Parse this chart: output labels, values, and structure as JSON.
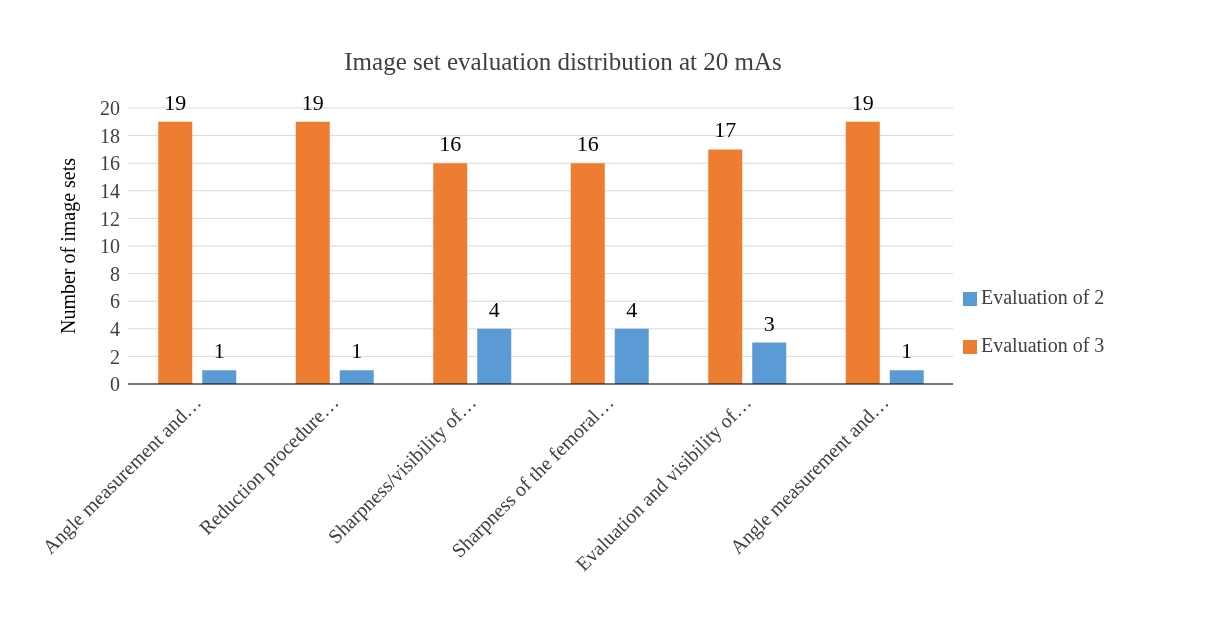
{
  "chart_data": {
    "type": "bar",
    "title": "Image set evaluation distribution at 20 mAs",
    "ylabel": "Number of image sets",
    "categories": [
      "Angle measurement and…",
      "Reduction procedure…",
      "Sharpness/visibility of…",
      "Sharpness of the femoral…",
      "Evaluation and visibility of…",
      "Angle measurement and…"
    ],
    "series": [
      {
        "name": "Evaluation of 3",
        "color": "#ed7d31",
        "values": [
          19,
          19,
          16,
          16,
          17,
          19
        ]
      },
      {
        "name": "Evaluation of 2",
        "color": "#5b9bd5",
        "values": [
          1,
          1,
          4,
          4,
          3,
          1
        ]
      }
    ],
    "ylim": [
      0,
      20
    ],
    "yticks": [
      0,
      2,
      4,
      6,
      8,
      10,
      12,
      14,
      16,
      18,
      20
    ],
    "grid": "y",
    "legend": "right",
    "data_labels": true
  }
}
